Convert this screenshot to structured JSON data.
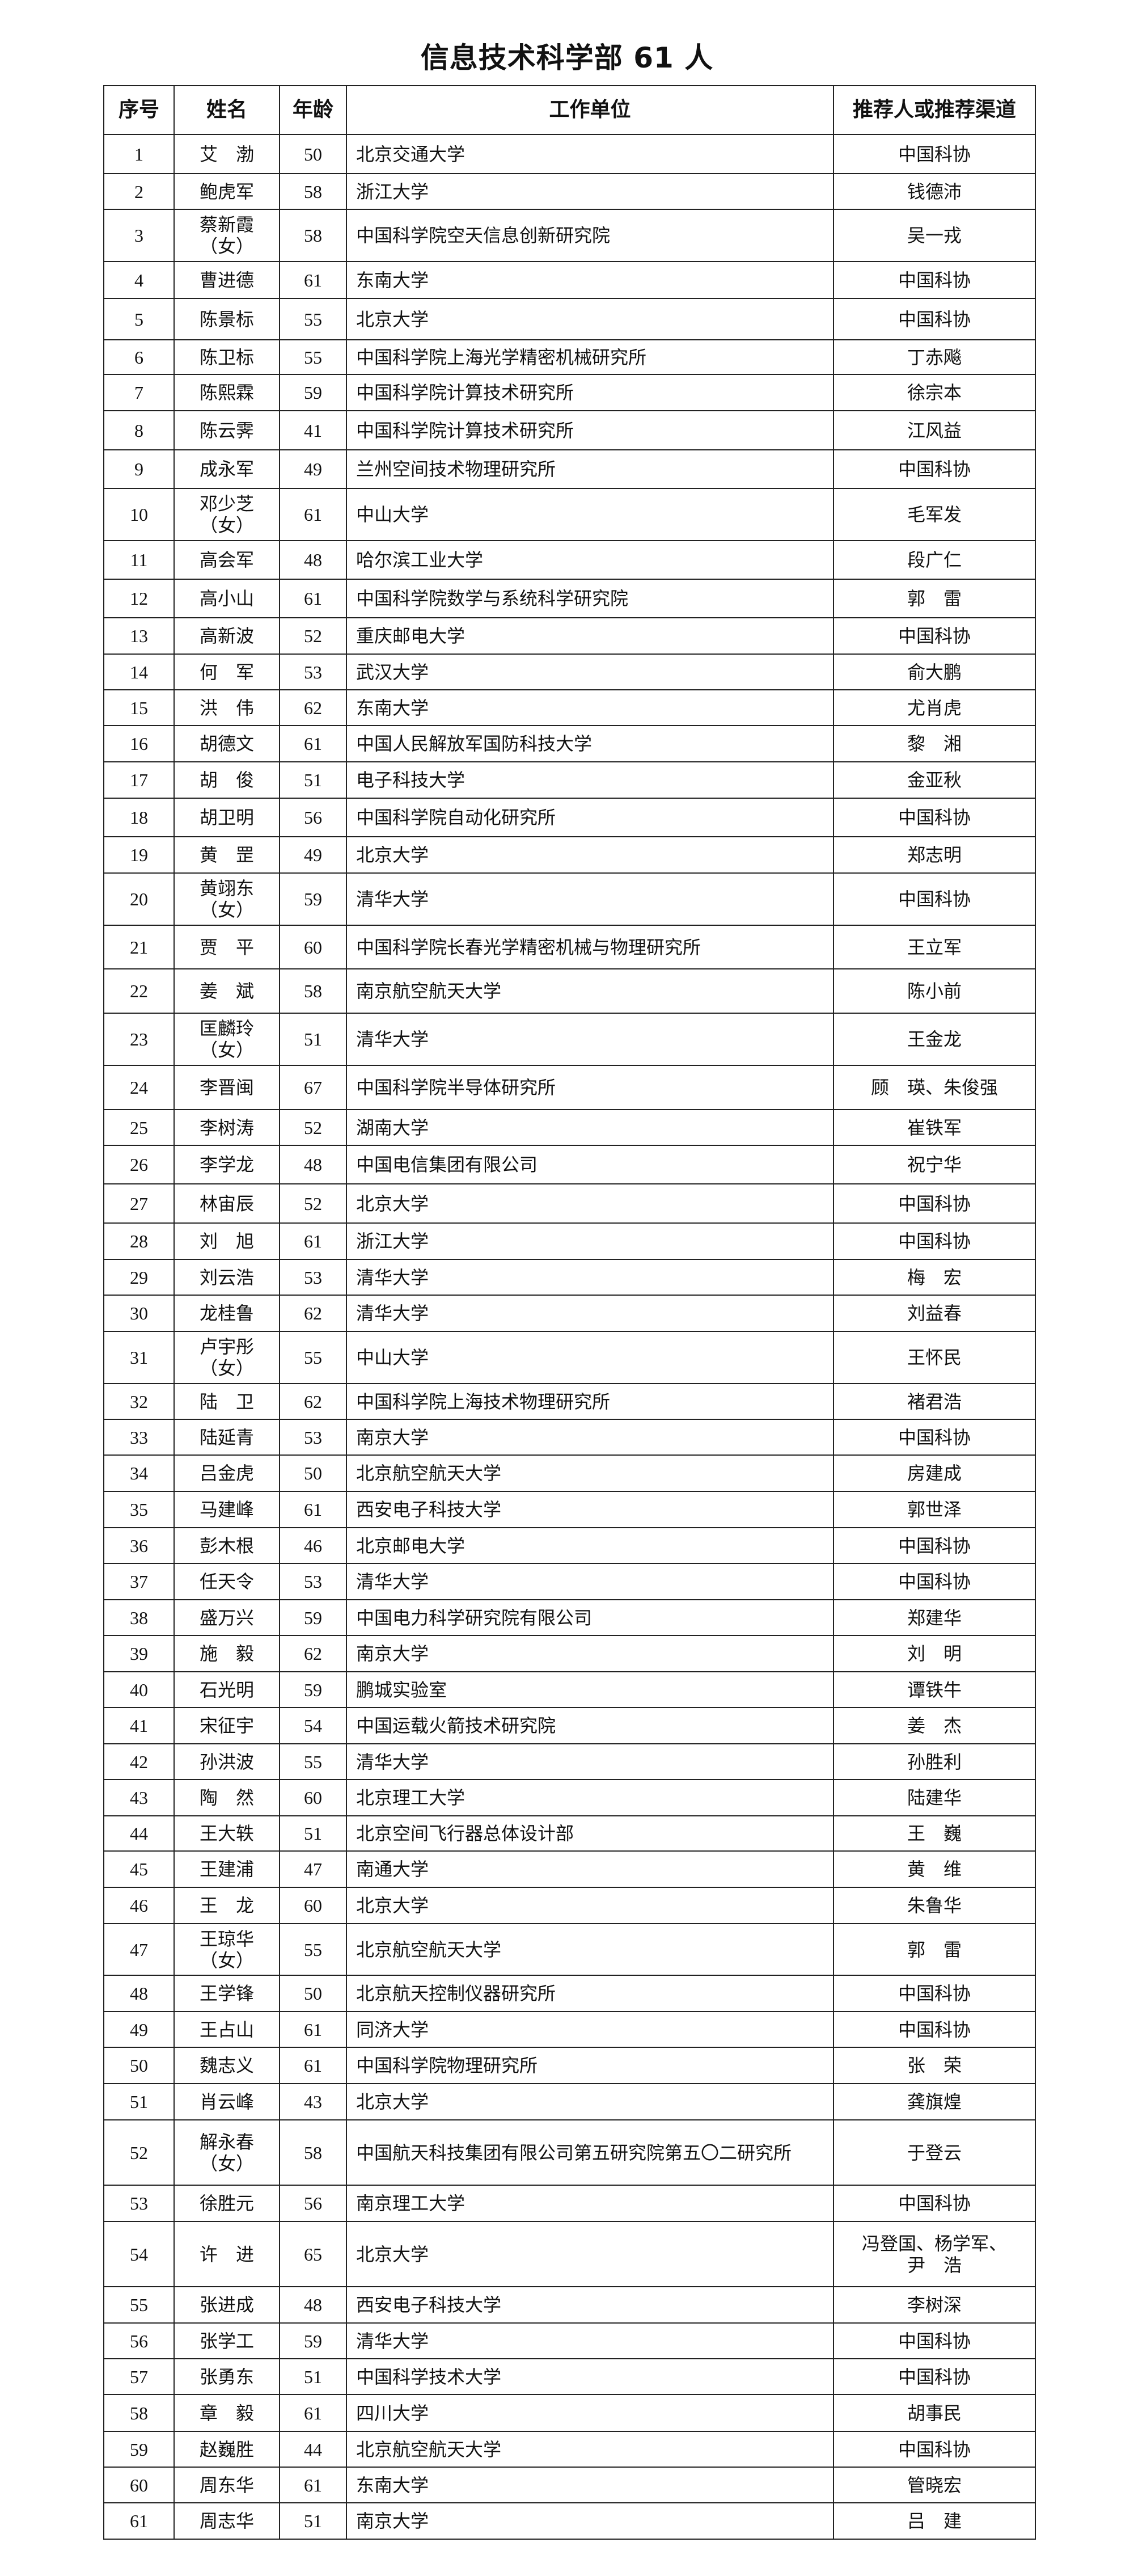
{
  "title": "信息技术科学部 61 人",
  "columns": [
    "序号",
    "姓名",
    "年龄",
    "工作单位",
    "推荐人或推荐渠道"
  ],
  "rows": [
    {
      "no": "1",
      "name": "艾　渤",
      "age": "50",
      "unit": "北京交通大学",
      "rec": "中国科协"
    },
    {
      "no": "2",
      "name": "鲍虎军",
      "age": "58",
      "unit": "浙江大学",
      "rec": "钱德沛"
    },
    {
      "no": "3",
      "name": "蔡新霞",
      "note": "（女）",
      "age": "58",
      "unit": "中国科学院空天信息创新研究院",
      "rec": "吴一戎"
    },
    {
      "no": "4",
      "name": "曹进德",
      "age": "61",
      "unit": "东南大学",
      "rec": "中国科协"
    },
    {
      "no": "5",
      "name": "陈景标",
      "age": "55",
      "unit": "北京大学",
      "rec": "中国科协"
    },
    {
      "no": "6",
      "name": "陈卫标",
      "age": "55",
      "unit": "中国科学院上海光学精密机械研究所",
      "rec": "丁赤飚"
    },
    {
      "no": "7",
      "name": "陈熙霖",
      "age": "59",
      "unit": "中国科学院计算技术研究所",
      "rec": "徐宗本"
    },
    {
      "no": "8",
      "name": "陈云霁",
      "age": "41",
      "unit": "中国科学院计算技术研究所",
      "rec": "江风益"
    },
    {
      "no": "9",
      "name": "成永军",
      "age": "49",
      "unit": "兰州空间技术物理研究所",
      "rec": "中国科协"
    },
    {
      "no": "10",
      "name": "邓少芝",
      "note": "（女）",
      "age": "61",
      "unit": "中山大学",
      "rec": "毛军发"
    },
    {
      "no": "11",
      "name": "高会军",
      "age": "48",
      "unit": "哈尔滨工业大学",
      "rec": "段广仁"
    },
    {
      "no": "12",
      "name": "高小山",
      "age": "61",
      "unit": "中国科学院数学与系统科学研究院",
      "rec": "郭　雷"
    },
    {
      "no": "13",
      "name": "高新波",
      "age": "52",
      "unit": "重庆邮电大学",
      "rec": "中国科协"
    },
    {
      "no": "14",
      "name": "何　军",
      "age": "53",
      "unit": "武汉大学",
      "rec": "俞大鹏"
    },
    {
      "no": "15",
      "name": "洪　伟",
      "age": "62",
      "unit": "东南大学",
      "rec": "尤肖虎"
    },
    {
      "no": "16",
      "name": "胡德文",
      "age": "61",
      "unit": "中国人民解放军国防科技大学",
      "rec": "黎　湘"
    },
    {
      "no": "17",
      "name": "胡　俊",
      "age": "51",
      "unit": "电子科技大学",
      "rec": "金亚秋"
    },
    {
      "no": "18",
      "name": "胡卫明",
      "age": "56",
      "unit": "中国科学院自动化研究所",
      "rec": "中国科协"
    },
    {
      "no": "19",
      "name": "黄　罡",
      "age": "49",
      "unit": "北京大学",
      "rec": "郑志明"
    },
    {
      "no": "20",
      "name": "黄翊东",
      "note": "（女）",
      "age": "59",
      "unit": "清华大学",
      "rec": "中国科协"
    },
    {
      "no": "21",
      "name": "贾　平",
      "age": "60",
      "unit": "中国科学院长春光学精密机械与物理研究所",
      "rec": "王立军"
    },
    {
      "no": "22",
      "name": "姜　斌",
      "age": "58",
      "unit": "南京航空航天大学",
      "rec": "陈小前"
    },
    {
      "no": "23",
      "name": "匡麟玲",
      "note": "（女）",
      "age": "51",
      "unit": "清华大学",
      "rec": "王金龙"
    },
    {
      "no": "24",
      "name": "李晋闽",
      "age": "67",
      "unit": "中国科学院半导体研究所",
      "rec": "顾　瑛、朱俊强"
    },
    {
      "no": "25",
      "name": "李树涛",
      "age": "52",
      "unit": "湖南大学",
      "rec": "崔铁军"
    },
    {
      "no": "26",
      "name": "李学龙",
      "age": "48",
      "unit": "中国电信集团有限公司",
      "rec": "祝宁华"
    },
    {
      "no": "27",
      "name": "林宙辰",
      "age": "52",
      "unit": "北京大学",
      "rec": "中国科协"
    },
    {
      "no": "28",
      "name": "刘　旭",
      "age": "61",
      "unit": "浙江大学",
      "rec": "中国科协"
    },
    {
      "no": "29",
      "name": "刘云浩",
      "age": "53",
      "unit": "清华大学",
      "rec": "梅　宏"
    },
    {
      "no": "30",
      "name": "龙桂鲁",
      "age": "62",
      "unit": "清华大学",
      "rec": "刘益春"
    },
    {
      "no": "31",
      "name": "卢宇彤",
      "note": "（女）",
      "age": "55",
      "unit": "中山大学",
      "rec": "王怀民"
    },
    {
      "no": "32",
      "name": "陆　卫",
      "age": "62",
      "unit": "中国科学院上海技术物理研究所",
      "rec": "褚君浩"
    },
    {
      "no": "33",
      "name": "陆延青",
      "age": "53",
      "unit": "南京大学",
      "rec": "中国科协"
    },
    {
      "no": "34",
      "name": "吕金虎",
      "age": "50",
      "unit": "北京航空航天大学",
      "rec": "房建成"
    },
    {
      "no": "35",
      "name": "马建峰",
      "age": "61",
      "unit": "西安电子科技大学",
      "rec": "郭世泽"
    },
    {
      "no": "36",
      "name": "彭木根",
      "age": "46",
      "unit": "北京邮电大学",
      "rec": "中国科协"
    },
    {
      "no": "37",
      "name": "任天令",
      "age": "53",
      "unit": "清华大学",
      "rec": "中国科协"
    },
    {
      "no": "38",
      "name": "盛万兴",
      "age": "59",
      "unit": "中国电力科学研究院有限公司",
      "rec": "郑建华"
    },
    {
      "no": "39",
      "name": "施　毅",
      "age": "62",
      "unit": "南京大学",
      "rec": "刘　明"
    },
    {
      "no": "40",
      "name": "石光明",
      "age": "59",
      "unit": "鹏城实验室",
      "rec": "谭铁牛"
    },
    {
      "no": "41",
      "name": "宋征宇",
      "age": "54",
      "unit": "中国运载火箭技术研究院",
      "rec": "姜　杰"
    },
    {
      "no": "42",
      "name": "孙洪波",
      "age": "55",
      "unit": "清华大学",
      "rec": "孙胜利"
    },
    {
      "no": "43",
      "name": "陶　然",
      "age": "60",
      "unit": "北京理工大学",
      "rec": "陆建华"
    },
    {
      "no": "44",
      "name": "王大轶",
      "age": "51",
      "unit": "北京空间飞行器总体设计部",
      "rec": "王　巍"
    },
    {
      "no": "45",
      "name": "王建浦",
      "age": "47",
      "unit": "南通大学",
      "rec": "黄　维"
    },
    {
      "no": "46",
      "name": "王　龙",
      "age": "60",
      "unit": "北京大学",
      "rec": "朱鲁华"
    },
    {
      "no": "47",
      "name": "王琼华",
      "note": "（女）",
      "age": "55",
      "unit": "北京航空航天大学",
      "rec": "郭　雷"
    },
    {
      "no": "48",
      "name": "王学锋",
      "age": "50",
      "unit": "北京航天控制仪器研究所",
      "rec": "中国科协"
    },
    {
      "no": "49",
      "name": "王占山",
      "age": "61",
      "unit": "同济大学",
      "rec": "中国科协"
    },
    {
      "no": "50",
      "name": "魏志义",
      "age": "61",
      "unit": "中国科学院物理研究所",
      "rec": "张　荣"
    },
    {
      "no": "51",
      "name": "肖云峰",
      "age": "43",
      "unit": "北京大学",
      "rec": "龚旗煌"
    },
    {
      "no": "52",
      "name": "解永春",
      "note": "（女）",
      "age": "58",
      "unit": "中国航天科技集团有限公司第五研究院第五〇二研究所",
      "rec": "于登云"
    },
    {
      "no": "53",
      "name": "徐胜元",
      "age": "56",
      "unit": "南京理工大学",
      "rec": "中国科协"
    },
    {
      "no": "54",
      "name": "许　进",
      "age": "65",
      "unit": "北京大学",
      "rec": "冯登国、杨学军、\n尹　浩"
    },
    {
      "no": "55",
      "name": "张进成",
      "age": "48",
      "unit": "西安电子科技大学",
      "rec": "李树深"
    },
    {
      "no": "56",
      "name": "张学工",
      "age": "59",
      "unit": "清华大学",
      "rec": "中国科协"
    },
    {
      "no": "57",
      "name": "张勇东",
      "age": "51",
      "unit": "中国科学技术大学",
      "rec": "中国科协"
    },
    {
      "no": "58",
      "name": "章　毅",
      "age": "61",
      "unit": "四川大学",
      "rec": "胡事民"
    },
    {
      "no": "59",
      "name": "赵巍胜",
      "age": "44",
      "unit": "北京航空航天大学",
      "rec": "中国科协"
    },
    {
      "no": "60",
      "name": "周东华",
      "age": "61",
      "unit": "东南大学",
      "rec": "管晓宏"
    },
    {
      "no": "61",
      "name": "周志华",
      "age": "51",
      "unit": "南京大学",
      "rec": "吕　建"
    }
  ]
}
